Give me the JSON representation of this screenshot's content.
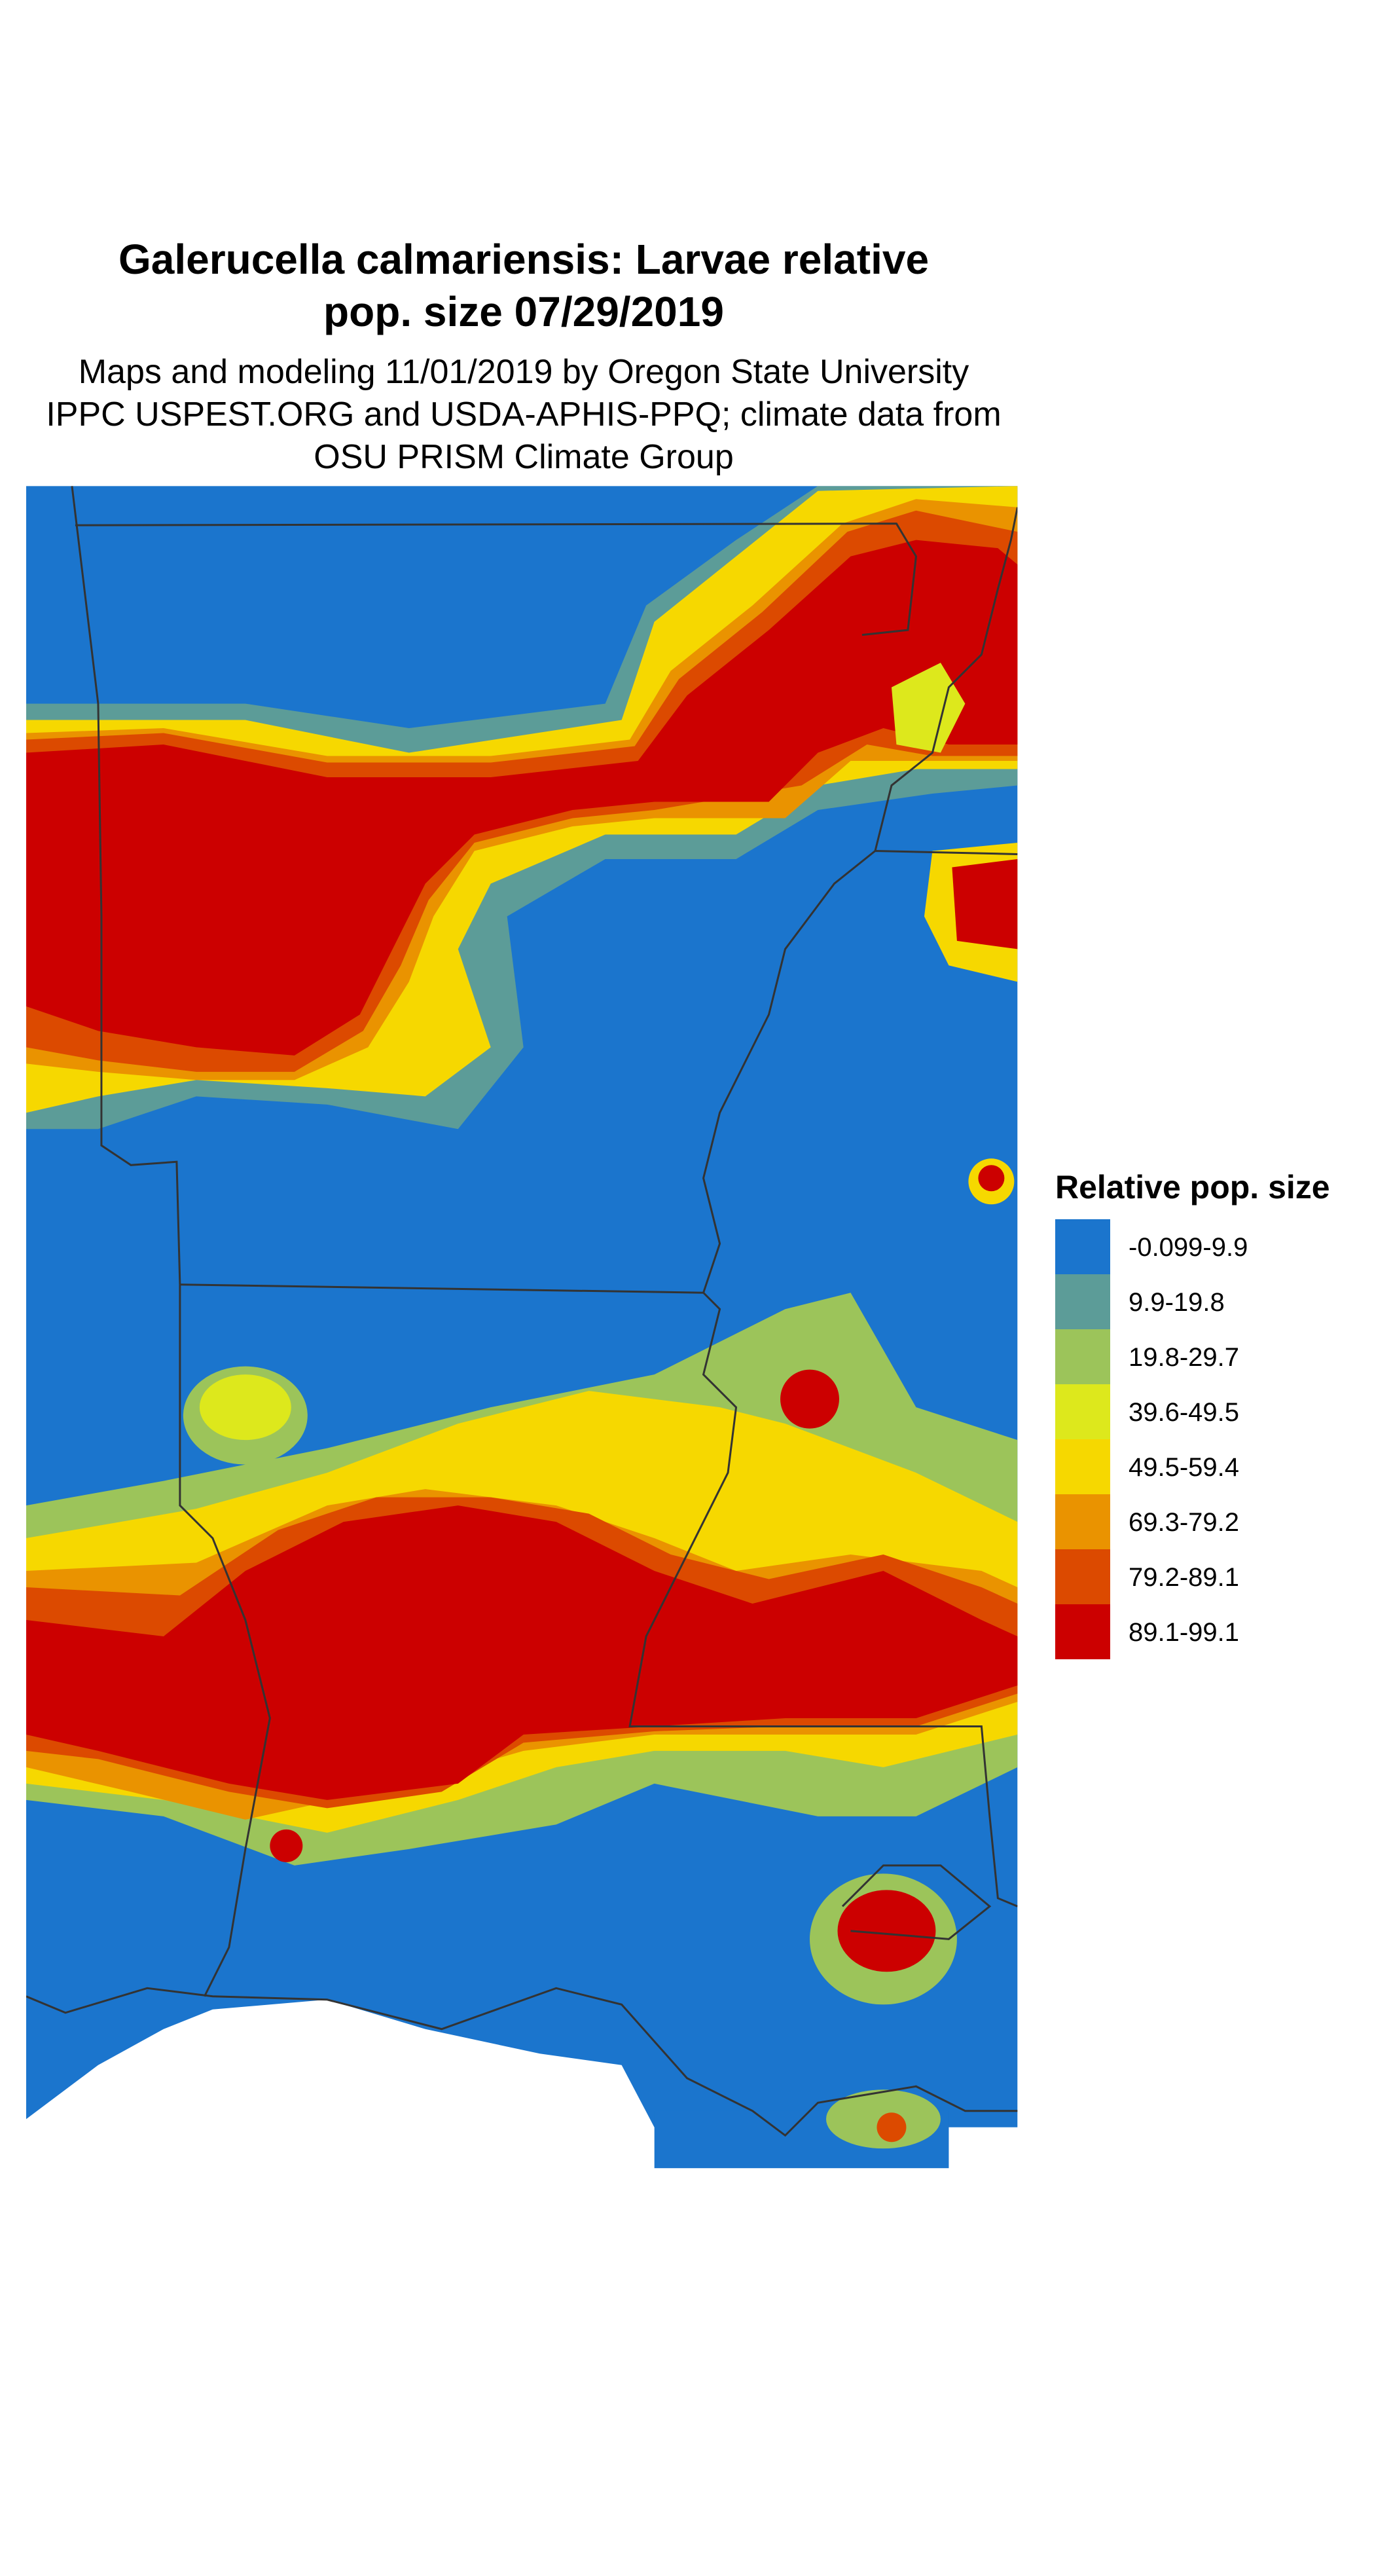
{
  "title": [
    "Galerucella calmariensis: Larvae relative",
    "pop. size 07/29/2019"
  ],
  "subtitle": [
    "Maps and modeling 11/01/2019 by Oregon State University",
    "IPPC USPEST.ORG and USDA-APHIS-PPQ; climate data from",
    "OSU PRISM Climate Group"
  ],
  "legend": {
    "title": "Relative pop. size",
    "items": [
      {
        "label": "-0.099-9.9",
        "color": "#1b75cd"
      },
      {
        "label": "9.9-19.8",
        "color": "#5c9c98"
      },
      {
        "label": "19.8-29.7",
        "color": "#9cc45a"
      },
      {
        "label": "39.6-49.5",
        "color": "#dde81c"
      },
      {
        "label": "49.5-59.4",
        "color": "#f6d800"
      },
      {
        "label": "69.3-79.2",
        "color": "#ea9300"
      },
      {
        "label": "79.2-89.1",
        "color": "#dc4a00"
      },
      {
        "label": "89.1-99.1",
        "color": "#cc0000"
      }
    ]
  }
}
